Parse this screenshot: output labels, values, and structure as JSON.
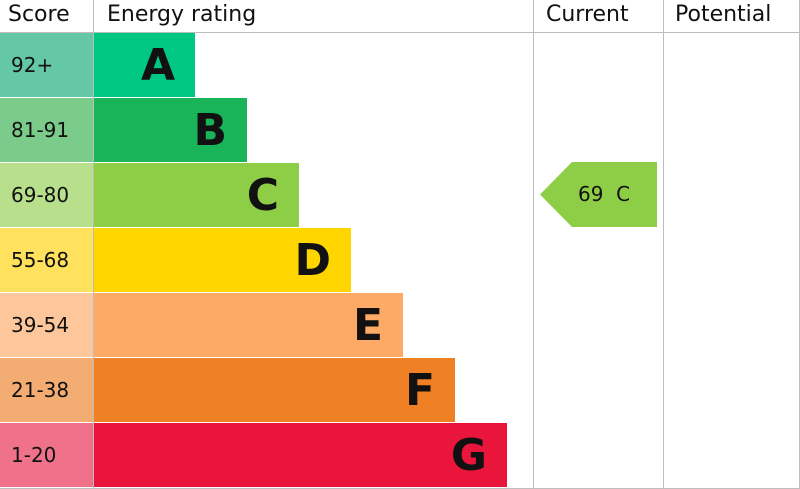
{
  "headers": {
    "score": "Score",
    "rating": "Energy rating",
    "current": "Current",
    "potential": "Potential"
  },
  "chart_data": {
    "type": "bar",
    "bands": [
      {
        "letter": "A",
        "range": "92+",
        "color": "#00c781",
        "score_color": "#64c7a5"
      },
      {
        "letter": "B",
        "range": "81-91",
        "color": "#19b459",
        "score_color": "#7bcb8a"
      },
      {
        "letter": "C",
        "range": "69-80",
        "color": "#8dce46",
        "score_color": "#b7df8c"
      },
      {
        "letter": "D",
        "range": "55-68",
        "color": "#ffd500",
        "score_color": "#ffe15e"
      },
      {
        "letter": "E",
        "range": "39-54",
        "color": "#fcaa65",
        "score_color": "#fdc69b"
      },
      {
        "letter": "F",
        "range": "21-38",
        "color": "#ef8023",
        "score_color": "#f3ac72"
      },
      {
        "letter": "G",
        "range": "1-20",
        "color": "#e9153b",
        "score_color": "#f0718a"
      }
    ],
    "current": {
      "score": "69",
      "letter": "C",
      "color": "#8dce46"
    },
    "potential": null
  }
}
